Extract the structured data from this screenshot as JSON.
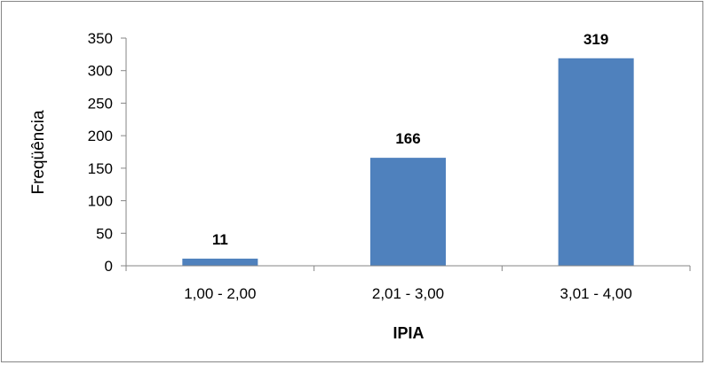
{
  "chart_data": {
    "type": "bar",
    "categories": [
      "1,00 - 2,00",
      "2,01 - 3,00",
      "3,01 - 4,00"
    ],
    "values": [
      11,
      166,
      319
    ],
    "data_labels": [
      "11",
      "166",
      "319"
    ],
    "xlabel": "IPIA",
    "ylabel": "Freqüência",
    "ylim": [
      0,
      350
    ],
    "yticks": [
      "0",
      "50",
      "100",
      "150",
      "200",
      "250",
      "300",
      "350"
    ],
    "bar_color": "#4F81BD",
    "grid": false,
    "legend": "none"
  }
}
